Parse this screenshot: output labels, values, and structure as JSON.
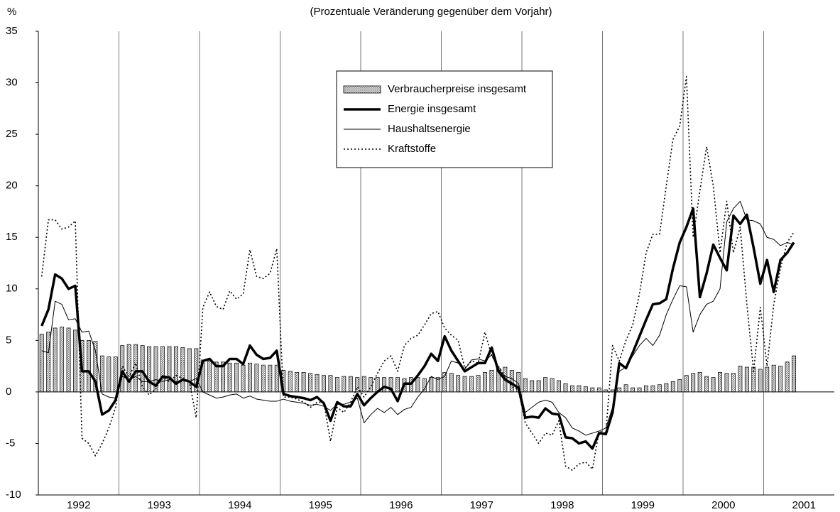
{
  "chart_data": {
    "type": "combo",
    "unit_label": "%",
    "subtitle": "(Prozentuale Veränderung gegenüber dem Vorjahr)",
    "year_labels": [
      "1992",
      "1993",
      "1994",
      "1995",
      "1996",
      "1997",
      "1998",
      "1999",
      "2000",
      "2001"
    ],
    "ylim": [
      -10,
      35
    ],
    "yticks": [
      35,
      30,
      25,
      20,
      15,
      10,
      5,
      0,
      -5,
      -10
    ],
    "legend": "top-center",
    "series": [
      {
        "name": "Verbraucherpreise insgesamt",
        "type": "bar",
        "color": "#000000",
        "values": [
          5.6,
          5.8,
          6.2,
          6.3,
          6.2,
          6.0,
          5.0,
          5.0,
          4.9,
          3.5,
          3.4,
          3.4,
          4.5,
          4.6,
          4.6,
          4.5,
          4.4,
          4.4,
          4.4,
          4.4,
          4.4,
          4.3,
          4.2,
          4.2,
          3.1,
          3.0,
          2.9,
          2.9,
          2.8,
          2.8,
          2.6,
          2.8,
          2.7,
          2.6,
          2.6,
          2.6,
          2.1,
          2.0,
          1.9,
          1.9,
          1.8,
          1.7,
          1.6,
          1.6,
          1.4,
          1.5,
          1.5,
          1.4,
          1.5,
          1.4,
          1.4,
          1.4,
          1.4,
          1.4,
          1.3,
          1.4,
          1.4,
          1.3,
          1.4,
          1.4,
          1.9,
          1.8,
          1.6,
          1.5,
          1.5,
          1.6,
          1.9,
          2.1,
          2.3,
          2.4,
          2.1,
          1.9,
          1.3,
          1.1,
          1.1,
          1.4,
          1.3,
          1.1,
          0.8,
          0.6,
          0.6,
          0.5,
          0.4,
          0.4,
          0.2,
          0.2,
          0.4,
          0.7,
          0.4,
          0.4,
          0.6,
          0.6,
          0.7,
          0.8,
          1.0,
          1.2,
          1.6,
          1.8,
          1.9,
          1.5,
          1.4,
          1.9,
          1.8,
          1.8,
          2.5,
          2.4,
          2.4,
          2.2,
          2.4,
          2.6,
          2.5,
          2.9,
          3.5
        ]
      },
      {
        "name": "Energie insgesamt",
        "type": "line",
        "style": "thick",
        "color": "#000000",
        "values": [
          6.4,
          8.0,
          11.4,
          11.0,
          10.0,
          10.3,
          2.0,
          2.0,
          1.0,
          -2.2,
          -1.8,
          -0.8,
          2.0,
          1.0,
          2.0,
          2.0,
          1.0,
          0.6,
          1.5,
          1.4,
          0.8,
          1.2,
          1.0,
          0.5,
          3.0,
          3.2,
          2.5,
          2.5,
          3.2,
          3.2,
          2.7,
          4.5,
          3.6,
          3.2,
          3.3,
          4.0,
          -0.2,
          -0.4,
          -0.5,
          -0.6,
          -0.8,
          -0.5,
          -1.1,
          -2.8,
          -1.0,
          -1.4,
          -1.4,
          -0.2,
          -1.3,
          -0.6,
          0.0,
          0.5,
          0.3,
          -0.9,
          0.8,
          0.8,
          1.6,
          2.5,
          3.7,
          3.0,
          5.4,
          4.0,
          3.0,
          2.0,
          2.4,
          2.8,
          2.8,
          4.3,
          2.0,
          1.2,
          0.8,
          0.4,
          -2.5,
          -2.4,
          -2.5,
          -1.6,
          -2.1,
          -2.2,
          -4.4,
          -4.5,
          -5.0,
          -4.8,
          -5.5,
          -4.0,
          -4.1,
          -2.0,
          2.8,
          2.3,
          3.8,
          5.4,
          7.0,
          8.5,
          8.6,
          9.0,
          12.0,
          14.5,
          16.0,
          17.8,
          9.2,
          11.5,
          14.3,
          13.0,
          11.8,
          17.1,
          16.3,
          17.2,
          14.0,
          10.5,
          12.8,
          9.7,
          12.8,
          13.5,
          14.5
        ]
      },
      {
        "name": "Haushaltsenergie",
        "type": "line",
        "style": "thin",
        "color": "#000000",
        "values": [
          4.0,
          3.8,
          8.8,
          8.5,
          7.0,
          7.1,
          5.8,
          5.9,
          4.0,
          -0.2,
          -0.5,
          -0.6,
          1.5,
          1.2,
          1.5,
          1.0,
          1.0,
          1.2,
          1.0,
          1.2,
          1.0,
          1.1,
          1.0,
          1.3,
          0.0,
          -0.3,
          -0.6,
          -0.5,
          -0.3,
          -0.2,
          -0.6,
          -0.4,
          -0.7,
          -0.8,
          -0.9,
          -0.9,
          -0.7,
          -0.9,
          -1.0,
          -1.1,
          -1.3,
          -1.2,
          -1.4,
          -1.8,
          -1.2,
          -1.2,
          -1.0,
          -0.6,
          -3.0,
          -2.2,
          -1.6,
          -2.0,
          -1.5,
          -2.2,
          -1.7,
          -1.5,
          -0.5,
          0.3,
          1.5,
          1.2,
          1.5,
          3.0,
          2.8,
          2.2,
          3.1,
          3.2,
          3.0,
          3.6,
          2.2,
          1.5,
          1.3,
          0.8,
          -2.0,
          -1.5,
          -1.0,
          -0.8,
          -1.0,
          -2.0,
          -2.5,
          -3.5,
          -3.8,
          -4.2,
          -4.0,
          -3.8,
          -3.5,
          -1.5,
          2.0,
          2.4,
          3.5,
          4.5,
          5.2,
          4.5,
          5.5,
          7.5,
          9.0,
          10.3,
          10.2,
          5.8,
          7.5,
          8.5,
          8.8,
          10.0,
          16.5,
          17.8,
          18.5,
          16.7,
          16.6,
          16.3,
          15.0,
          14.8,
          14.2,
          14.5,
          14.3
        ]
      },
      {
        "name": "Kraftstoffe",
        "type": "line",
        "style": "dotted",
        "color": "#000000",
        "values": [
          11.2,
          16.7,
          16.7,
          15.8,
          16.0,
          16.6,
          -4.5,
          -5.0,
          -6.2,
          -5.0,
          -3.5,
          -1.5,
          2.5,
          1.5,
          2.8,
          0.5,
          -0.3,
          0.3,
          1.5,
          1.0,
          1.6,
          1.3,
          1.0,
          -2.5,
          8.2,
          9.7,
          8.3,
          8.0,
          9.8,
          9.0,
          9.5,
          13.8,
          11.2,
          11.0,
          11.5,
          13.9,
          -0.5,
          -0.5,
          -0.7,
          -1.0,
          -1.5,
          -1.0,
          -1.0,
          -4.8,
          -1.5,
          -2.0,
          -1.0,
          0.5,
          -0.5,
          0.5,
          1.8,
          3.0,
          3.5,
          2.0,
          4.5,
          5.2,
          5.5,
          6.5,
          7.6,
          7.8,
          6.2,
          5.5,
          5.0,
          2.3,
          3.0,
          2.8,
          5.8,
          3.5,
          2.5,
          1.5,
          0.5,
          0.2,
          -3.0,
          -4.0,
          -5.0,
          -4.0,
          -4.2,
          -2.8,
          -7.2,
          -7.6,
          -7.0,
          -6.8,
          -7.5,
          -3.8,
          -4.0,
          4.5,
          3.0,
          5.0,
          6.5,
          9.5,
          13.5,
          15.3,
          15.3,
          20.0,
          24.5,
          25.8,
          30.6,
          15.0,
          19.5,
          23.8,
          20.0,
          13.5,
          18.5,
          13.5,
          16.0,
          8.5,
          2.0,
          8.2,
          2.5,
          8.5,
          12.0,
          14.5,
          15.5
        ]
      }
    ]
  }
}
